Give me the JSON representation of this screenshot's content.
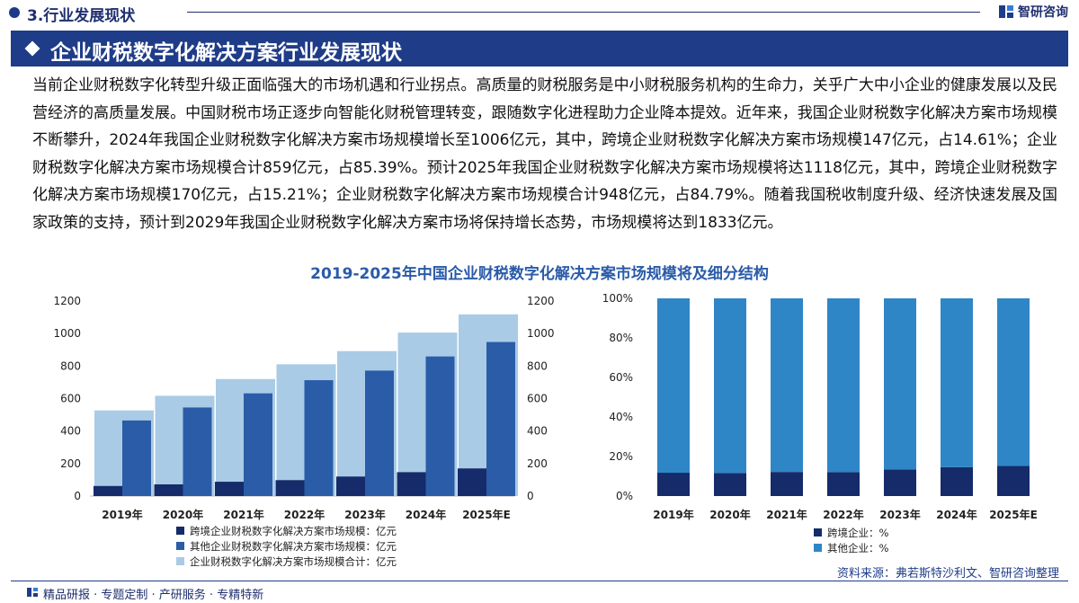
{
  "header": {
    "section_title": "3.行业发展现状",
    "brand": "智研咨询"
  },
  "banner": {
    "title": "企业财税数字化解决方案行业发展现状"
  },
  "body_text": "当前企业财税数字化转型升级正面临强大的市场机遇和行业拐点。高质量的财税服务是中小财税服务机构的生命力，关乎广大中小企业的健康发展以及民营经济的高质量发展。中国财税市场正逐步向智能化财税管理转变，跟随数字化进程助力企业降本提效。近年来，我国企业财税数字化解决方案市场规模不断攀升，2024年我国企业财税数字化解决方案市场规模增长至1006亿元，其中，跨境企业财税数字化解决方案市场规模147亿元，占14.61%；企业财税数字化解决方案市场规模合计859亿元，占85.39%。预计2025年我国企业财税数字化解决方案市场规模将达1118亿元，其中，跨境企业财税数字化解决方案市场规模170亿元，占15.21%；企业财税数字化解决方案市场规模合计948亿元，占84.79%。随着我国税收制度升级、经济快速发展及国家政策的支持，预计到2029年我国企业财税数字化解决方案市场将保持增长态势，市场规模将达到1833亿元。",
  "chart_title": "2019-2025年中国企业财税数字化解决方案市场规模将及细分结构",
  "colors": {
    "dark": "#152b6a",
    "mid": "#2a5ca8",
    "light": "#a9cbe6",
    "pct_light": "#2f86c6"
  },
  "chart_data": [
    {
      "type": "bar",
      "categories": [
        "2019年",
        "2020年",
        "2021年",
        "2022年",
        "2023年",
        "2024年",
        "2025年E"
      ],
      "series": [
        {
          "name": "跨境企业财税数字化解决方案市场规模：亿元",
          "values": [
            62,
            72,
            88,
            98,
            120,
            147,
            170
          ]
        },
        {
          "name": "其他企业财税数字化解决方案市场规模：亿元",
          "values": [
            465,
            545,
            632,
            713,
            772,
            859,
            948
          ]
        },
        {
          "name": "企业财税数字化解决方案市场规模合计：亿元",
          "values": [
            527,
            617,
            720,
            811,
            892,
            1006,
            1118
          ]
        }
      ],
      "ylim": [
        0,
        1200
      ],
      "yticks": [
        "0",
        "200",
        "400",
        "600",
        "800",
        "1000",
        "1200"
      ],
      "y2ticks": [
        "0",
        "200",
        "400",
        "600",
        "800",
        "1000",
        "1200"
      ]
    },
    {
      "type": "bar",
      "stacked": true,
      "categories": [
        "2019年",
        "2020年",
        "2021年",
        "2022年",
        "2023年",
        "2024年",
        "2025年E"
      ],
      "series": [
        {
          "name": "跨境企业：%",
          "values": [
            11.8,
            11.7,
            12.2,
            12.1,
            13.5,
            14.61,
            15.21
          ]
        },
        {
          "name": "其他企业：%",
          "values": [
            88.2,
            88.3,
            87.8,
            87.9,
            86.5,
            85.39,
            84.79
          ]
        }
      ],
      "ylim": [
        0,
        100
      ],
      "yticks": [
        "0%",
        "20%",
        "40%",
        "60%",
        "80%",
        "100%"
      ]
    }
  ],
  "footer": {
    "source": "资料来源：弗若斯特沙利文、智研咨询整理",
    "tagline": "精品研报 · 专题定制 · 产研服务 · 专精特新"
  }
}
